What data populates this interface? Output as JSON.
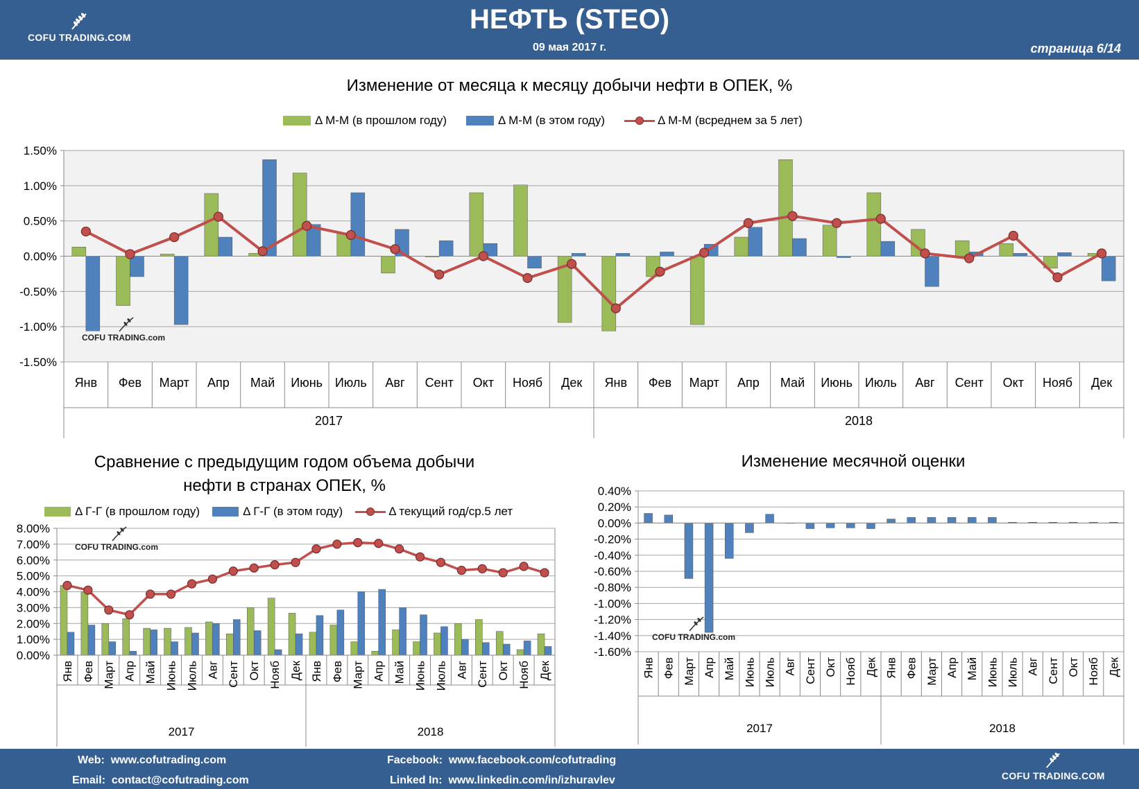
{
  "header": {
    "logo_text": "COFU TRADING.COM",
    "title": "НЕФТЬ (STEO)",
    "date": "09 мая 2017 г.",
    "page": "страница  6/14"
  },
  "footer": {
    "web_label": "Web:",
    "web_value": "www.cofutrading.com",
    "email_label": "Email:",
    "email_value": "contact@cofutrading.com",
    "facebook_label": "Facebook:",
    "facebook_value": "www.facebook.com/cofutrading",
    "linkedin_label": "Linked In:",
    "linkedin_value": "www.linkedin.com/in/izhuravlev",
    "logo_text": "COFU TRADING.COM"
  },
  "watermark": "COFU TRADING.com",
  "colors": {
    "green": "#9bbb59",
    "blue": "#4f81bd",
    "red": "#c0504d",
    "header": "#365f91"
  },
  "chart_data": [
    {
      "type": "bar",
      "title": "Изменение от месяца к месяцу добычи нефти в ОПЕК, %",
      "categories": [
        "Янв",
        "Фев",
        "Март",
        "Апр",
        "Май",
        "Июнь",
        "Июль",
        "Авг",
        "Сент",
        "Окт",
        "Нояб",
        "Дек",
        "Янв",
        "Фев",
        "Март",
        "Апр",
        "Май",
        "Июнь",
        "Июль",
        "Авг",
        "Сент",
        "Окт",
        "Нояб",
        "Дек"
      ],
      "groups": [
        "2017",
        "2018"
      ],
      "yticks": [
        "1.50%",
        "1.00%",
        "0.50%",
        "0.00%",
        "-0.50%",
        "-1.00%",
        "-1.50%"
      ],
      "ylim": [
        -1.5,
        1.5
      ],
      "legend_placement": "top",
      "series": [
        {
          "name": "Δ М-М (в прошлом году)",
          "kind": "bar",
          "color": "#9bbb59",
          "values": [
            0.13,
            -0.7,
            0.03,
            0.89,
            0.04,
            1.18,
            0.32,
            -0.24,
            -0.01,
            0.9,
            1.01,
            -0.94,
            -1.06,
            -0.29,
            -0.97,
            0.27,
            1.37,
            0.44,
            0.9,
            0.38,
            0.22,
            0.18,
            -0.17,
            0.04
          ]
        },
        {
          "name": "Δ М-М (в этом году)",
          "kind": "bar",
          "color": "#4f81bd",
          "values": [
            -1.06,
            -0.29,
            -0.97,
            0.27,
            1.37,
            0.45,
            0.9,
            0.38,
            0.22,
            0.18,
            -0.17,
            0.04,
            0.04,
            0.06,
            0.17,
            0.41,
            0.25,
            -0.02,
            0.21,
            -0.43,
            0.06,
            0.04,
            0.05,
            -0.35
          ]
        },
        {
          "name": "Δ М-М (всреднем за 5 лет)",
          "kind": "line",
          "color": "#c0504d",
          "values": [
            0.35,
            0.03,
            0.27,
            0.56,
            0.07,
            0.43,
            0.3,
            0.1,
            -0.26,
            0.0,
            -0.31,
            -0.11,
            -0.74,
            -0.22,
            0.05,
            0.47,
            0.57,
            0.47,
            0.53,
            0.04,
            -0.03,
            0.29,
            -0.3,
            0.04
          ]
        }
      ]
    },
    {
      "type": "bar",
      "title": "Сравнение с предыдущим годом объема добычи нефти в странах ОПЕК, %",
      "categories": [
        "Янв",
        "Фев",
        "Март",
        "Апр",
        "Май",
        "Июнь",
        "Июль",
        "Авг",
        "Сент",
        "Окт",
        "Нояб",
        "Дек",
        "Янв",
        "Фев",
        "Март",
        "Апр",
        "Май",
        "Июнь",
        "Июль",
        "Авг",
        "Сент",
        "Окт",
        "Нояб",
        "Дек"
      ],
      "groups": [
        "2017",
        "2018"
      ],
      "yticks": [
        "8.00%",
        "7.00%",
        "6.00%",
        "5.00%",
        "4.00%",
        "3.00%",
        "2.00%",
        "1.00%",
        "0.00%"
      ],
      "ylim": [
        0,
        8
      ],
      "legend_placement": "top",
      "series": [
        {
          "name": "Δ Г-Г (в прошлом году)",
          "kind": "bar",
          "color": "#9bbb59",
          "values": [
            4.4,
            4.0,
            2.0,
            2.3,
            1.7,
            1.7,
            1.75,
            2.1,
            1.35,
            3.0,
            3.6,
            2.65,
            1.45,
            1.9,
            0.85,
            0.25,
            1.6,
            0.85,
            1.4,
            2.0,
            2.25,
            1.5,
            0.35,
            1.35
          ]
        },
        {
          "name": "Δ Г-Г (в этом году)",
          "kind": "bar",
          "color": "#4f81bd",
          "values": [
            1.45,
            1.9,
            0.85,
            0.25,
            1.6,
            0.85,
            1.4,
            2.0,
            2.25,
            1.55,
            0.35,
            1.35,
            2.5,
            2.85,
            4.0,
            4.15,
            3.0,
            2.55,
            1.8,
            1.0,
            0.8,
            0.7,
            0.9,
            0.55
          ]
        },
        {
          "name": "Δ текущий год/ср.5 лет",
          "kind": "line",
          "color": "#c0504d",
          "values": [
            4.4,
            4.1,
            2.85,
            2.55,
            3.85,
            3.85,
            4.5,
            4.8,
            5.3,
            5.5,
            5.7,
            5.85,
            6.7,
            7.0,
            7.1,
            7.05,
            6.7,
            6.2,
            5.85,
            5.35,
            5.45,
            5.2,
            5.6,
            5.2
          ]
        }
      ]
    },
    {
      "type": "bar",
      "title": "Изменение месячной оценки",
      "categories": [
        "Янв",
        "Фев",
        "Март",
        "Апр",
        "Май",
        "Июнь",
        "Июль",
        "Авг",
        "Сент",
        "Окт",
        "Нояб",
        "Дек",
        "Янв",
        "Фев",
        "Март",
        "Апр",
        "Май",
        "Июнь",
        "Июль",
        "Авг",
        "Сент",
        "Окт",
        "Нояб",
        "Дек"
      ],
      "groups": [
        "2017",
        "2018"
      ],
      "yticks": [
        "0.40%",
        "0.20%",
        "0.00%",
        "-0.20%",
        "-0.40%",
        "-0.60%",
        "-0.80%",
        "-1.00%",
        "-1.20%",
        "-1.40%",
        "-1.60%"
      ],
      "ylim": [
        -1.6,
        0.4
      ],
      "series": [
        {
          "name": "",
          "kind": "bar",
          "color": "#4f81bd",
          "values": [
            0.12,
            0.1,
            -0.69,
            -1.36,
            -0.44,
            -0.12,
            0.11,
            0.0,
            -0.07,
            -0.06,
            -0.06,
            -0.07,
            0.05,
            0.07,
            0.07,
            0.07,
            0.07,
            0.07,
            0.01,
            0.01,
            0.01,
            0.01,
            0.01,
            0.01
          ]
        }
      ]
    }
  ]
}
